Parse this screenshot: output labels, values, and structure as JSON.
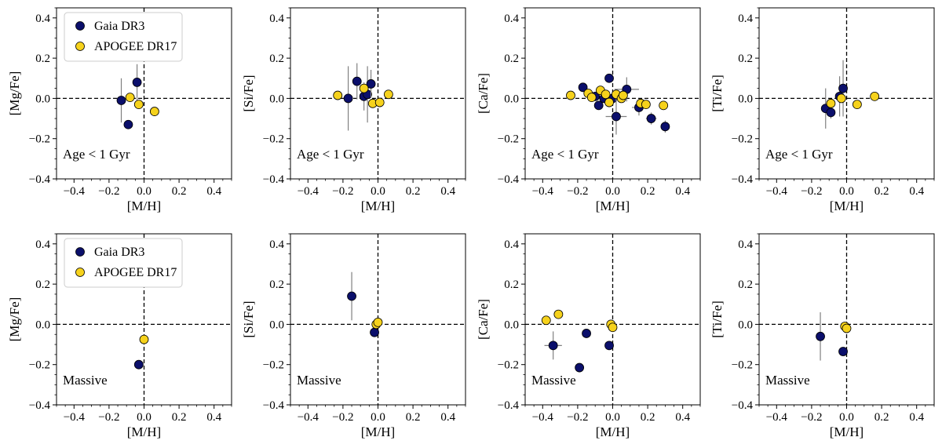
{
  "figure": {
    "legend": [
      {
        "label": "Gaia DR3",
        "color": "#0b0f6b"
      },
      {
        "label": "APOGEE DR17",
        "color": "#f6d21c"
      }
    ],
    "rows": [
      "Age < 1 Gyr",
      "Massive"
    ]
  },
  "chart_data": [
    {
      "type": "scatter",
      "xlabel": "[M/H]",
      "ylabel": "[Mg/Fe]",
      "annotation": "Age < 1 Gyr",
      "xlim": [
        -0.5,
        0.5
      ],
      "ylim": [
        -0.4,
        0.45
      ],
      "xticks": [
        "−0.4",
        "−0.2",
        "0.0",
        "0.2",
        "0.4"
      ],
      "yticks": [
        "−0.4",
        "−0.2",
        "0.0",
        "0.2",
        "0.4"
      ],
      "legend": true,
      "series": [
        {
          "name": "Gaia DR3",
          "points": [
            {
              "x": -0.13,
              "y": -0.01,
              "yerr": 0.11
            },
            {
              "x": -0.09,
              "y": -0.13,
              "yerr": 0.0
            },
            {
              "x": -0.04,
              "y": 0.08,
              "yerr": 0.09
            }
          ]
        },
        {
          "name": "APOGEE DR17",
          "points": [
            {
              "x": -0.08,
              "y": 0.005,
              "yerr": 0.0
            },
            {
              "x": -0.03,
              "y": -0.03,
              "yerr": 0.0
            },
            {
              "x": 0.06,
              "y": -0.065,
              "yerr": 0.0
            }
          ]
        }
      ]
    },
    {
      "type": "scatter",
      "xlabel": "[M/H]",
      "ylabel": "[Si/Fe]",
      "annotation": "Age < 1 Gyr",
      "xlim": [
        -0.5,
        0.5
      ],
      "ylim": [
        -0.4,
        0.45
      ],
      "xticks": [
        "−0.4",
        "−0.2",
        "0.0",
        "0.2",
        "0.4"
      ],
      "yticks": [
        "−0.4",
        "−0.2",
        "0.0",
        "0.2",
        "0.4"
      ],
      "legend": false,
      "series": [
        {
          "name": "Gaia DR3",
          "points": [
            {
              "x": -0.17,
              "y": 0.0,
              "yerr": 0.16
            },
            {
              "x": -0.12,
              "y": 0.085,
              "yerr": 0.09
            },
            {
              "x": -0.08,
              "y": 0.01,
              "yerr": 0.07
            },
            {
              "x": -0.06,
              "y": 0.02,
              "yerr": 0.14
            },
            {
              "x": -0.04,
              "y": 0.072,
              "yerr": 0.07
            }
          ]
        },
        {
          "name": "APOGEE DR17",
          "points": [
            {
              "x": -0.23,
              "y": 0.015,
              "yerr": 0.0
            },
            {
              "x": -0.08,
              "y": 0.05,
              "yerr": 0.0
            },
            {
              "x": -0.03,
              "y": -0.025,
              "yerr": 0.0
            },
            {
              "x": 0.01,
              "y": -0.02,
              "yerr": 0.0
            },
            {
              "x": 0.06,
              "y": 0.02,
              "yerr": 0.0
            }
          ]
        }
      ]
    },
    {
      "type": "scatter",
      "xlabel": "[M/H]",
      "ylabel": "[Ca/Fe]",
      "annotation": "Age < 1 Gyr",
      "xlim": [
        -0.5,
        0.5
      ],
      "ylim": [
        -0.4,
        0.45
      ],
      "xticks": [
        "−0.4",
        "−0.2",
        "0.0",
        "0.2",
        "0.4"
      ],
      "yticks": [
        "−0.4",
        "−0.2",
        "0.0",
        "0.2",
        "0.4"
      ],
      "legend": false,
      "series": [
        {
          "name": "Gaia DR3",
          "points": [
            {
              "x": -0.17,
              "y": 0.055,
              "yerr": 0.02,
              "xerr": 0.02
            },
            {
              "x": -0.1,
              "y": 0.01,
              "yerr": 0.02,
              "xerr": 0.02
            },
            {
              "x": -0.08,
              "y": -0.035,
              "yerr": 0.02,
              "xerr": 0.02
            },
            {
              "x": -0.05,
              "y": 0.0,
              "yerr": 0.02,
              "xerr": 0.02
            },
            {
              "x": -0.02,
              "y": 0.1,
              "yerr": 0.02,
              "xerr": 0.02
            },
            {
              "x": 0.0,
              "y": 0.0,
              "yerr": 0.03,
              "xerr": 0.03
            },
            {
              "x": 0.02,
              "y": -0.09,
              "yerr": 0.09,
              "xerr": 0.06
            },
            {
              "x": 0.08,
              "y": 0.045,
              "yerr": 0.06,
              "xerr": 0.07
            },
            {
              "x": 0.15,
              "y": -0.045,
              "yerr": 0.04,
              "xerr": 0.04
            },
            {
              "x": 0.22,
              "y": -0.1,
              "yerr": 0.03,
              "xerr": 0.03
            },
            {
              "x": 0.3,
              "y": -0.14,
              "yerr": 0.03,
              "xerr": 0.02
            }
          ]
        },
        {
          "name": "APOGEE DR17",
          "points": [
            {
              "x": -0.24,
              "y": 0.015,
              "yerr": 0.0
            },
            {
              "x": -0.14,
              "y": 0.025,
              "yerr": 0.0
            },
            {
              "x": -0.12,
              "y": 0.005,
              "yerr": 0.0
            },
            {
              "x": -0.07,
              "y": 0.04,
              "yerr": 0.0
            },
            {
              "x": -0.04,
              "y": 0.02,
              "yerr": 0.0
            },
            {
              "x": -0.02,
              "y": -0.02,
              "yerr": 0.0
            },
            {
              "x": 0.02,
              "y": 0.02,
              "yerr": 0.0
            },
            {
              "x": 0.05,
              "y": 0.0,
              "yerr": 0.0
            },
            {
              "x": 0.06,
              "y": 0.015,
              "yerr": 0.0
            },
            {
              "x": 0.16,
              "y": -0.025,
              "yerr": 0.0
            },
            {
              "x": 0.19,
              "y": -0.03,
              "yerr": 0.0
            },
            {
              "x": 0.29,
              "y": -0.035,
              "yerr": 0.0
            }
          ]
        }
      ]
    },
    {
      "type": "scatter",
      "xlabel": "[M/H]",
      "ylabel": "[Ti/Fe]",
      "annotation": "Age < 1 Gyr",
      "xlim": [
        -0.5,
        0.5
      ],
      "ylim": [
        -0.4,
        0.45
      ],
      "xticks": [
        "−0.4",
        "−0.2",
        "0.0",
        "0.2",
        "0.4"
      ],
      "yticks": [
        "−0.4",
        "−0.2",
        "0.0",
        "0.2",
        "0.4"
      ],
      "legend": false,
      "series": [
        {
          "name": "Gaia DR3",
          "points": [
            {
              "x": -0.12,
              "y": -0.05,
              "yerr": 0.1
            },
            {
              "x": -0.09,
              "y": -0.07,
              "yerr": 0.03
            },
            {
              "x": -0.04,
              "y": 0.01,
              "yerr": 0.1
            },
            {
              "x": -0.02,
              "y": 0.05,
              "yerr": 0.14
            }
          ]
        },
        {
          "name": "APOGEE DR17",
          "points": [
            {
              "x": -0.09,
              "y": -0.025,
              "yerr": 0.0
            },
            {
              "x": -0.03,
              "y": 0.0,
              "yerr": 0.0
            },
            {
              "x": 0.06,
              "y": -0.03,
              "yerr": 0.0
            },
            {
              "x": 0.16,
              "y": 0.01,
              "yerr": 0.0
            }
          ]
        }
      ]
    },
    {
      "type": "scatter",
      "xlabel": "[M/H]",
      "ylabel": "[Mg/Fe]",
      "annotation": "Massive",
      "xlim": [
        -0.5,
        0.5
      ],
      "ylim": [
        -0.4,
        0.45
      ],
      "xticks": [
        "−0.4",
        "−0.2",
        "0.0",
        "0.2",
        "0.4"
      ],
      "yticks": [
        "−0.4",
        "−0.2",
        "0.0",
        "0.2",
        "0.4"
      ],
      "legend": true,
      "series": [
        {
          "name": "Gaia DR3",
          "points": [
            {
              "x": -0.03,
              "y": -0.2,
              "yerr": 0.0
            }
          ]
        },
        {
          "name": "APOGEE DR17",
          "points": [
            {
              "x": 0.0,
              "y": -0.075,
              "yerr": 0.0
            }
          ]
        }
      ]
    },
    {
      "type": "scatter",
      "xlabel": "[M/H]",
      "ylabel": "[Si/Fe]",
      "annotation": "Massive",
      "xlim": [
        -0.5,
        0.5
      ],
      "ylim": [
        -0.4,
        0.45
      ],
      "xticks": [
        "−0.4",
        "−0.2",
        "0.0",
        "0.2",
        "0.4"
      ],
      "yticks": [
        "−0.4",
        "−0.2",
        "0.0",
        "0.2",
        "0.4"
      ],
      "legend": false,
      "series": [
        {
          "name": "Gaia DR3",
          "points": [
            {
              "x": -0.15,
              "y": 0.14,
              "yerr": 0.12
            },
            {
              "x": -0.02,
              "y": -0.04,
              "yerr": 0.02
            }
          ]
        },
        {
          "name": "APOGEE DR17",
          "points": [
            {
              "x": -0.01,
              "y": 0.0,
              "yerr": 0.0
            },
            {
              "x": 0.0,
              "y": 0.01,
              "yerr": 0.0
            }
          ]
        }
      ]
    },
    {
      "type": "scatter",
      "xlabel": "[M/H]",
      "ylabel": "[Ca/Fe]",
      "annotation": "Massive",
      "xlim": [
        -0.5,
        0.5
      ],
      "ylim": [
        -0.4,
        0.45
      ],
      "xticks": [
        "−0.4",
        "−0.2",
        "0.0",
        "0.2",
        "0.4"
      ],
      "yticks": [
        "−0.4",
        "−0.2",
        "0.0",
        "0.2",
        "0.4"
      ],
      "legend": false,
      "series": [
        {
          "name": "Gaia DR3",
          "points": [
            {
              "x": -0.34,
              "y": -0.105,
              "yerr": 0.07,
              "xerr": 0.05
            },
            {
              "x": -0.19,
              "y": -0.215,
              "yerr": 0.02,
              "xerr": 0.0
            },
            {
              "x": -0.15,
              "y": -0.045,
              "yerr": 0.0,
              "xerr": 0.0
            },
            {
              "x": -0.02,
              "y": -0.105,
              "yerr": 0.0,
              "xerr": 0.0
            }
          ]
        },
        {
          "name": "APOGEE DR17",
          "points": [
            {
              "x": -0.38,
              "y": 0.02,
              "yerr": 0.0
            },
            {
              "x": -0.31,
              "y": 0.05,
              "yerr": 0.0
            },
            {
              "x": -0.01,
              "y": 0.0,
              "yerr": 0.0
            },
            {
              "x": 0.0,
              "y": -0.015,
              "yerr": 0.0
            }
          ]
        }
      ]
    },
    {
      "type": "scatter",
      "xlabel": "[M/H]",
      "ylabel": "[Ti/Fe]",
      "annotation": "Massive",
      "xlim": [
        -0.5,
        0.5
      ],
      "ylim": [
        -0.4,
        0.45
      ],
      "xticks": [
        "−0.4",
        "−0.2",
        "0.0",
        "0.2",
        "0.4"
      ],
      "yticks": [
        "−0.4",
        "−0.2",
        "0.0",
        "0.2",
        "0.4"
      ],
      "legend": false,
      "series": [
        {
          "name": "Gaia DR3",
          "points": [
            {
              "x": -0.15,
              "y": -0.06,
              "yerr": 0.12
            },
            {
              "x": -0.02,
              "y": -0.135,
              "yerr": 0.0
            }
          ]
        },
        {
          "name": "APOGEE DR17",
          "points": [
            {
              "x": -0.01,
              "y": -0.01,
              "yerr": 0.0
            },
            {
              "x": 0.0,
              "y": -0.02,
              "yerr": 0.0
            }
          ]
        }
      ]
    }
  ]
}
